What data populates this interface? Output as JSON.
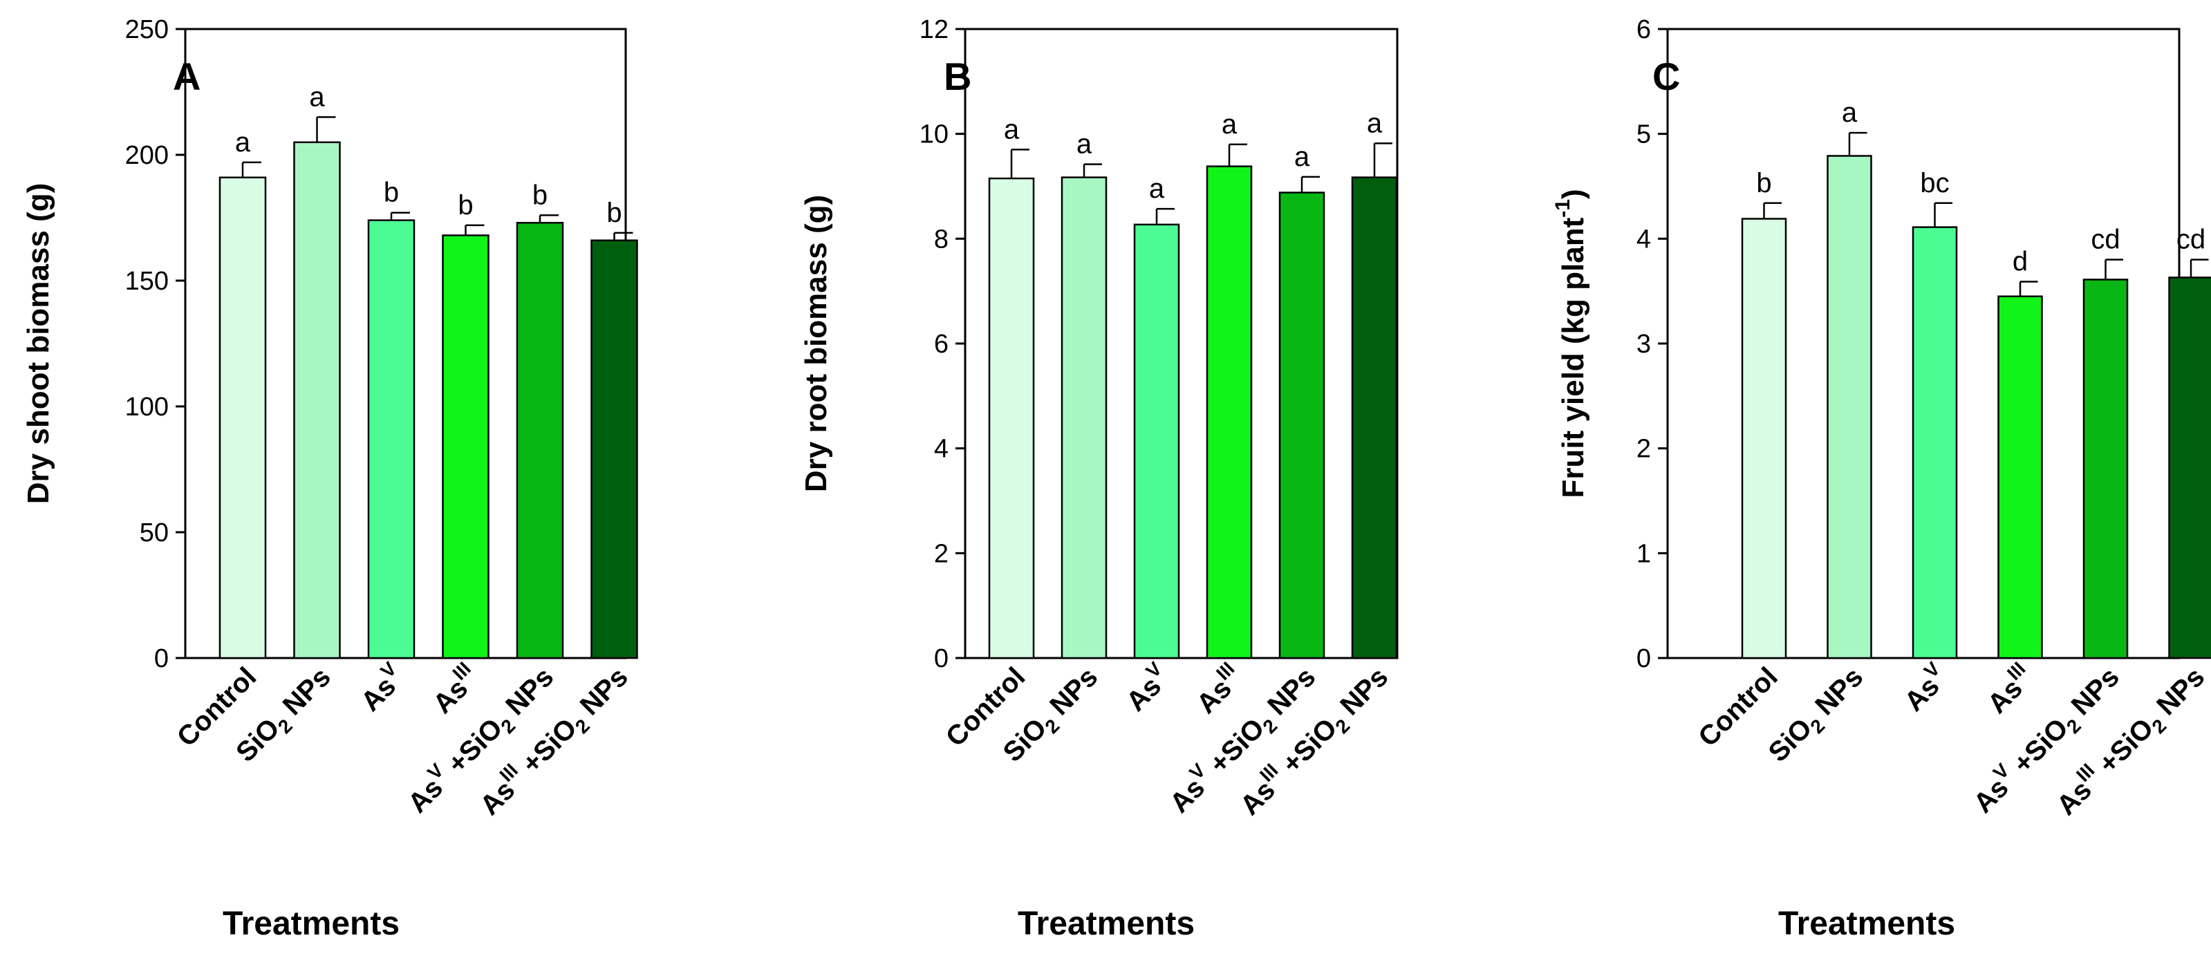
{
  "categories": [
    {
      "base": "Control",
      "sub": "",
      "sup": "",
      "rest": ""
    },
    {
      "base": "SiO",
      "sub": "2",
      "sup": "",
      "rest": " NPs"
    },
    {
      "base": "As",
      "sub": "",
      "sup": "V",
      "rest": ""
    },
    {
      "base": "As",
      "sub": "",
      "sup": "III",
      "rest": ""
    },
    {
      "base": "As",
      "sub": "",
      "sup": "V",
      "rest": " +SiO",
      "sub2": "2",
      "rest2": " NPs"
    },
    {
      "base": "As",
      "sub": "",
      "sup": "III",
      "rest": " +SiO",
      "sub2": "2",
      "rest2": " NPs"
    }
  ],
  "colors": [
    "#d9fce5",
    "#a8f7c2",
    "#4dfb94",
    "#11f418",
    "#08b714",
    "#005f0e"
  ],
  "chart_data": [
    {
      "type": "bar",
      "panel": "A",
      "ylabel": "Dry shoot biomass (g)",
      "xlabel": "Treatments",
      "ylim": [
        0,
        250
      ],
      "yticks": [
        0,
        50,
        100,
        150,
        200,
        250
      ],
      "values": [
        191,
        205,
        174,
        168,
        173,
        166
      ],
      "errors": [
        6,
        10,
        3,
        4,
        3,
        3
      ],
      "letters": [
        "a",
        "a",
        "b",
        "b",
        "b",
        "b"
      ]
    },
    {
      "type": "bar",
      "panel": "B",
      "ylabel": "Dry root biomass (g)",
      "xlabel": "Treatments",
      "ylim": [
        0,
        12
      ],
      "yticks": [
        0,
        2,
        4,
        6,
        8,
        10,
        12
      ],
      "values": [
        9.15,
        9.17,
        8.27,
        9.38,
        8.88,
        9.17
      ],
      "errors": [
        0.55,
        0.25,
        0.3,
        0.42,
        0.3,
        0.65
      ],
      "letters": [
        "a",
        "a",
        "a",
        "a",
        "a",
        "a"
      ]
    },
    {
      "type": "bar",
      "panel": "C",
      "ylabel_main": "Fruit yield (kg plant",
      "ylabel_sup": "-1",
      "ylabel_end": ")",
      "xlabel": "Treatments",
      "ylim": [
        0,
        6
      ],
      "yticks": [
        0,
        1,
        2,
        3,
        4,
        5,
        6
      ],
      "values": [
        4.19,
        4.79,
        4.11,
        3.45,
        3.61,
        3.63
      ],
      "errors": [
        0.15,
        0.22,
        0.23,
        0.14,
        0.19,
        0.17
      ],
      "letters": [
        "b",
        "a",
        "bc",
        "d",
        "cd",
        "cd"
      ]
    }
  ]
}
